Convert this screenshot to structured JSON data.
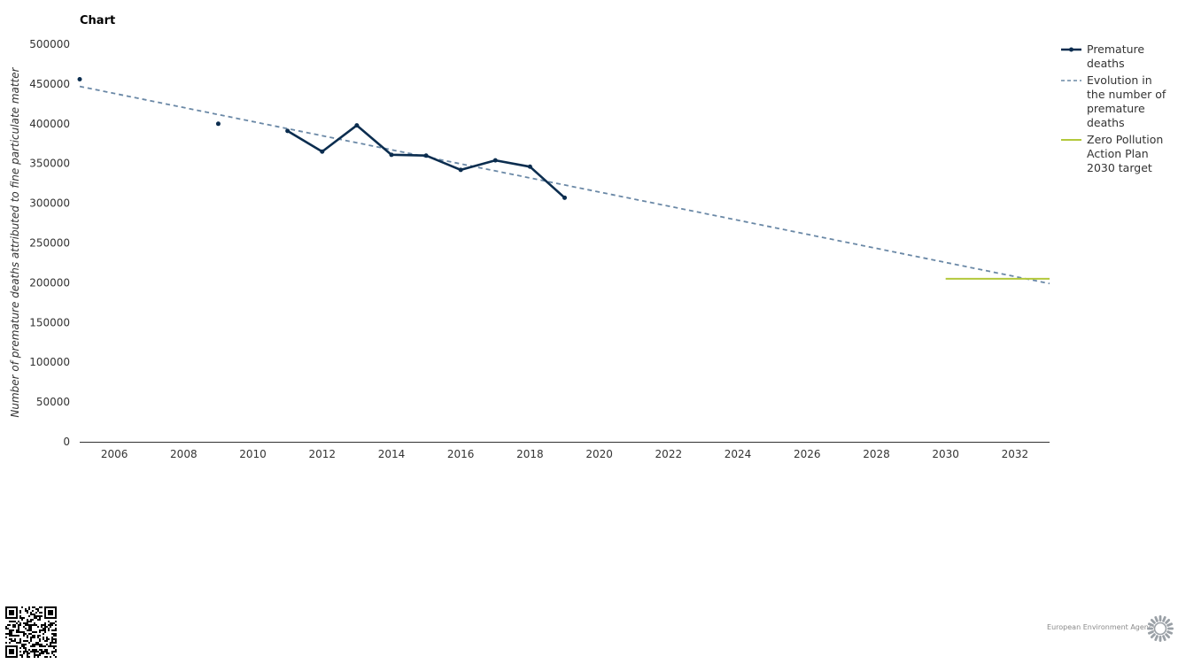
{
  "header": {
    "title": "Chart"
  },
  "footer": {
    "logo_text": "European Environment Agency"
  },
  "chart_data": {
    "type": "line",
    "title": "Chart",
    "xlabel": "",
    "ylabel": "Number of premature deaths attributed to fine particulate matter",
    "xlim": [
      2005,
      2033
    ],
    "ylim": [
      0,
      500000
    ],
    "x_ticks": [
      "2006",
      "2008",
      "2010",
      "2012",
      "2014",
      "2016",
      "2018",
      "2020",
      "2022",
      "2024",
      "2026",
      "2028",
      "2030",
      "2032"
    ],
    "y_ticks": [
      "0",
      "50000",
      "100000",
      "150000",
      "200000",
      "250000",
      "300000",
      "350000",
      "400000",
      "450000",
      "500000"
    ],
    "legend_position": "top-right",
    "series": [
      {
        "name": "Premature deaths",
        "style": "solid-markers",
        "color": "#0b2d4f",
        "x": [
          2005,
          2009,
          2011,
          2012,
          2013,
          2014,
          2015,
          2016,
          2017,
          2018,
          2019
        ],
        "values": [
          456000,
          400000,
          391000,
          365000,
          398000,
          361000,
          360000,
          342000,
          354000,
          346000,
          307000
        ]
      },
      {
        "name": "Evolution in the number of premature deaths",
        "style": "dashed",
        "color": "#6a88a6",
        "x": [
          2005,
          2033
        ],
        "values": [
          447000,
          199000
        ]
      },
      {
        "name": "Zero Pollution Action Plan 2030 target",
        "style": "solid",
        "color": "#b3c83b",
        "x": [
          2030,
          2033
        ],
        "values": [
          205000,
          205000
        ]
      }
    ]
  }
}
